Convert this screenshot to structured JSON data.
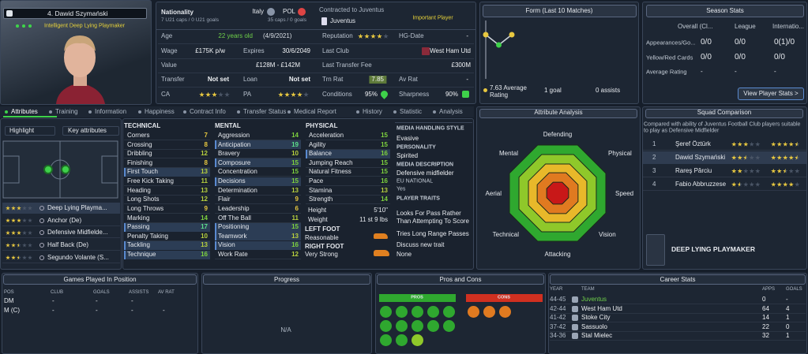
{
  "profile": {
    "name": "4. Dawid Szymański",
    "role": "Intelligent  Deep Lying Playmaker"
  },
  "info": {
    "nationality": "Nationality",
    "nation1": "Italy",
    "nation1_caps": "7 U21 caps / 0 U21 goals",
    "nation2": "POL",
    "nation2_caps": "35 caps / 0 goals",
    "contract": "Contracted to Juventus",
    "club": "Juventus",
    "status": "Important Player",
    "age": {
      "label": "Age",
      "value": "22 years old",
      "date": "(4/9/2021)"
    },
    "wage": {
      "label": "Wage",
      "value": "£175K p/w"
    },
    "expires": {
      "label": "Expires",
      "value": "30/6/2049"
    },
    "value": {
      "label": "Value",
      "value": "£128M - £142M"
    },
    "transfer": {
      "label": "Transfer",
      "value": "Not set"
    },
    "loan": {
      "label": "Loan",
      "value": "Not set"
    },
    "ca": {
      "label": "CA",
      "stars": 3
    },
    "pa": {
      "label": "PA",
      "stars": 4
    },
    "reputation": {
      "label": "Reputation",
      "stars": 4
    },
    "hg_date": {
      "label": "HG-Date",
      "value": "-"
    },
    "last_club": {
      "label": "Last Club",
      "value": "West Ham Utd"
    },
    "last_fee": {
      "label": "Last Transfer Fee",
      "value": "£300M"
    },
    "trn_rat": {
      "label": "Trn Rat",
      "value": "7.85"
    },
    "av_rat": {
      "label": "Av Rat",
      "value": "-"
    },
    "conditions": {
      "label": "Conditions",
      "value": "95%"
    },
    "sharpness": {
      "label": "Sharpness",
      "value": "90%"
    }
  },
  "form": {
    "title": "Form (Last 10 Matches)",
    "values": [
      7.9,
      7.1,
      7.9
    ],
    "average": "7.63 Average Rating",
    "goals": "1 goal",
    "assists": "0 assists"
  },
  "season": {
    "title": "Season Stats",
    "columns": [
      "Overall (Cl...",
      "League",
      "Internatio..."
    ],
    "rows": [
      {
        "label": "Appearances/Go...",
        "values": [
          "0/0",
          "0/0",
          "0(1)/0"
        ]
      },
      {
        "label": "Yellow/Red Cards",
        "values": [
          "0/0",
          "0/0",
          "0/0"
        ]
      },
      {
        "label": "Average Rating",
        "values": [
          "-",
          "-",
          "-"
        ]
      }
    ],
    "button": "View Player Stats >"
  },
  "tabs": [
    "Attributes",
    "Training",
    "Information",
    "Happiness",
    "Contract Info",
    "Transfer Status",
    "Medical Report",
    "History",
    "Statistic",
    "Analysis"
  ],
  "highlight": {
    "label": "Highlight",
    "option": "Key attributes"
  },
  "roles": [
    {
      "name": "Deep Lying Playma...",
      "stars": 3
    },
    {
      "name": "Anchor (De)",
      "stars": 3
    },
    {
      "name": "Defensive Midfielde...",
      "stars": 3
    },
    {
      "name": "Half Back (De)",
      "stars": 2.5
    },
    {
      "name": "Segundo Volante (S...",
      "stars": 2.5
    }
  ],
  "attributes": {
    "technical": {
      "title": "TECHNICAL",
      "items": [
        {
          "name": "Corners",
          "value": 7
        },
        {
          "name": "Crossing",
          "value": 8
        },
        {
          "name": "Dribbling",
          "value": 12
        },
        {
          "name": "Finishing",
          "value": 8
        },
        {
          "name": "First Touch",
          "value": 13,
          "key": true
        },
        {
          "name": "Free Kick Taking",
          "value": 11
        },
        {
          "name": "Heading",
          "value": 13
        },
        {
          "name": "Long Shots",
          "value": 12
        },
        {
          "name": "Long Throws",
          "value": 9
        },
        {
          "name": "Marking",
          "value": 14
        },
        {
          "name": "Passing",
          "value": 17,
          "key": true
        },
        {
          "name": "Penalty Taking",
          "value": 10
        },
        {
          "name": "Tackling",
          "value": 13,
          "key": true
        },
        {
          "name": "Technique",
          "value": 16,
          "key": true
        }
      ]
    },
    "mental": {
      "title": "MENTAL",
      "items": [
        {
          "name": "Aggression",
          "value": 14
        },
        {
          "name": "Anticipation",
          "value": 19,
          "key": true
        },
        {
          "name": "Bravery",
          "value": 10
        },
        {
          "name": "Composure",
          "value": 15,
          "key": true
        },
        {
          "name": "Concentration",
          "value": 15
        },
        {
          "name": "Decisions",
          "value": 15,
          "key": true
        },
        {
          "name": "Determination",
          "value": 13
        },
        {
          "name": "Flair",
          "value": 9
        },
        {
          "name": "Leadership",
          "value": 6
        },
        {
          "name": "Off The Ball",
          "value": 11
        },
        {
          "name": "Positioning",
          "value": 15,
          "key": true
        },
        {
          "name": "Teamwork",
          "value": 13,
          "key": true
        },
        {
          "name": "Vision",
          "value": 16,
          "key": true
        },
        {
          "name": "Work Rate",
          "value": 12
        }
      ]
    },
    "physical": {
      "title": "PHYSICAL",
      "items": [
        {
          "name": "Acceleration",
          "value": 15
        },
        {
          "name": "Agility",
          "value": 15
        },
        {
          "name": "Balance",
          "value": 16,
          "key": true
        },
        {
          "name": "Jumping Reach",
          "value": 15
        },
        {
          "name": "Natural Fitness",
          "value": 15
        },
        {
          "name": "Pace",
          "value": 16
        },
        {
          "name": "Stamina",
          "value": 13
        },
        {
          "name": "Strength",
          "value": 14
        }
      ]
    }
  },
  "body": {
    "height_label": "Height",
    "height": "5'10\"",
    "weight_label": "Weight",
    "weight": "11 st 9 lbs",
    "left_foot_label": "LEFT FOOT",
    "left_foot": "Reasonable",
    "right_foot_label": "RIGHT FOOT",
    "right_foot": "Very Strong"
  },
  "media": {
    "style_label": "MEDIA HANDLING STYLE",
    "style": "Evasive",
    "personality_label": "PERSONALITY",
    "personality": "Spirited",
    "description_label": "MEDIA DESCRIPTION",
    "description": "Defensive midfielder",
    "eu_label": "EU NATIONAL",
    "eu": "Yes",
    "traits_label": "PLAYER TRAITS",
    "traits": [
      "Looks For Pass Rather Than Attempting To Score",
      "Tries Long Range Passes"
    ],
    "discuss": "Discuss new trait",
    "none": "None"
  },
  "analysis": {
    "title": "Attribute Analysis",
    "labels": [
      "Defending",
      "Physical",
      "Speed",
      "Vision",
      "Attacking",
      "Technical",
      "Aerial",
      "Mental"
    ]
  },
  "squad": {
    "title": "Squad Comparison",
    "note": "Compared with ability of Juventus Football Club players suitable to play as Defensive Midfielder",
    "players": [
      {
        "rank": 1,
        "name": "Şeref Öztürk",
        "current": 3,
        "potential": 4.5
      },
      {
        "rank": 2,
        "name": "Dawid Szymański",
        "current": 2.5,
        "potential": 4.5
      },
      {
        "rank": 3,
        "name": "Rareş Pârciu",
        "current": 2,
        "potential": 2.5
      },
      {
        "rank": 4,
        "name": "Fabio Abbruzzese",
        "current": 1.5,
        "potential": 4
      }
    ],
    "role": "DEEP LYING PLAYMAKER"
  },
  "positions": {
    "title": "Games Played In Position",
    "columns": [
      "POS",
      "CLUB",
      "GOALS",
      "ASSISTS",
      "AV RAT"
    ],
    "rows": [
      [
        "DM",
        "-",
        "-",
        "-"
      ],
      [
        "M (C)",
        "-",
        "-",
        "-",
        "-"
      ]
    ]
  },
  "progress": {
    "title": "Progress",
    "text": "N/A"
  },
  "pros_cons": {
    "title": "Pros and Cons",
    "pros": "PROS",
    "cons": "CONS"
  },
  "career": {
    "title": "Career Stats",
    "columns": [
      "YEAR",
      "TEAM",
      "APPS",
      "GOALS"
    ],
    "rows": [
      [
        "44-45",
        "Juventus",
        "0",
        "-"
      ],
      [
        "42-44",
        "West Ham Utd",
        "64",
        "4"
      ],
      [
        "41-42",
        "Stoke City",
        "14",
        "1"
      ],
      [
        "37-42",
        "Sassuolo",
        "22",
        "0"
      ],
      [
        "34-36",
        "Stal Mielec",
        "32",
        "1"
      ]
    ]
  }
}
